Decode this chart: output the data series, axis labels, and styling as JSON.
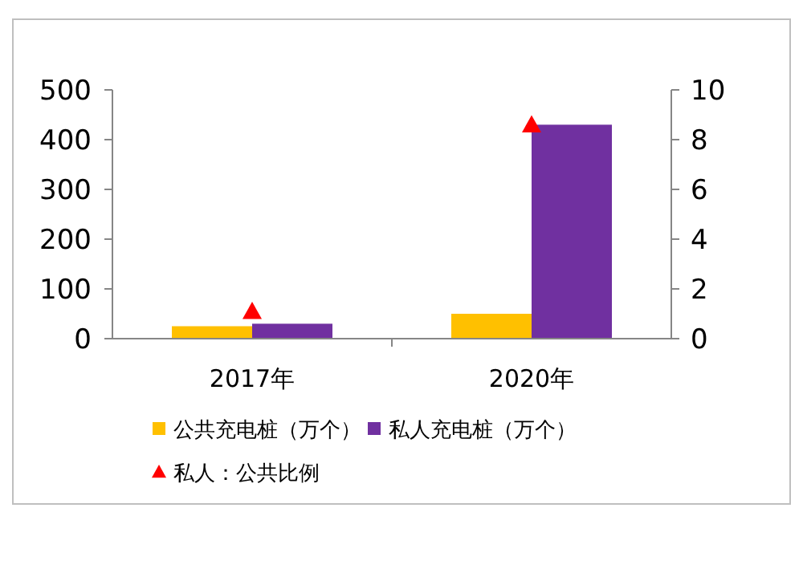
{
  "chart_data": {
    "type": "bar",
    "categories": [
      "2017年",
      "2020年"
    ],
    "series": [
      {
        "name": "公共充电桩（万个）",
        "color": "#ffc000",
        "values": [
          25,
          50
        ]
      },
      {
        "name": "私人充电桩（万个）",
        "color": "#7030a0",
        "values": [
          30,
          430
        ]
      },
      {
        "name": "私人：公共比例",
        "type": "scatter",
        "axis": "y2",
        "marker": "triangle",
        "color": "#ff0000",
        "values": [
          1.1,
          8.6
        ]
      }
    ],
    "ylim": [
      0,
      500
    ],
    "yticks": [
      0,
      100,
      200,
      300,
      400,
      500
    ],
    "y2lim": [
      0,
      10
    ],
    "y2ticks": [
      0,
      2,
      4,
      6,
      8,
      10
    ],
    "grid": false,
    "legend": "bottom"
  }
}
